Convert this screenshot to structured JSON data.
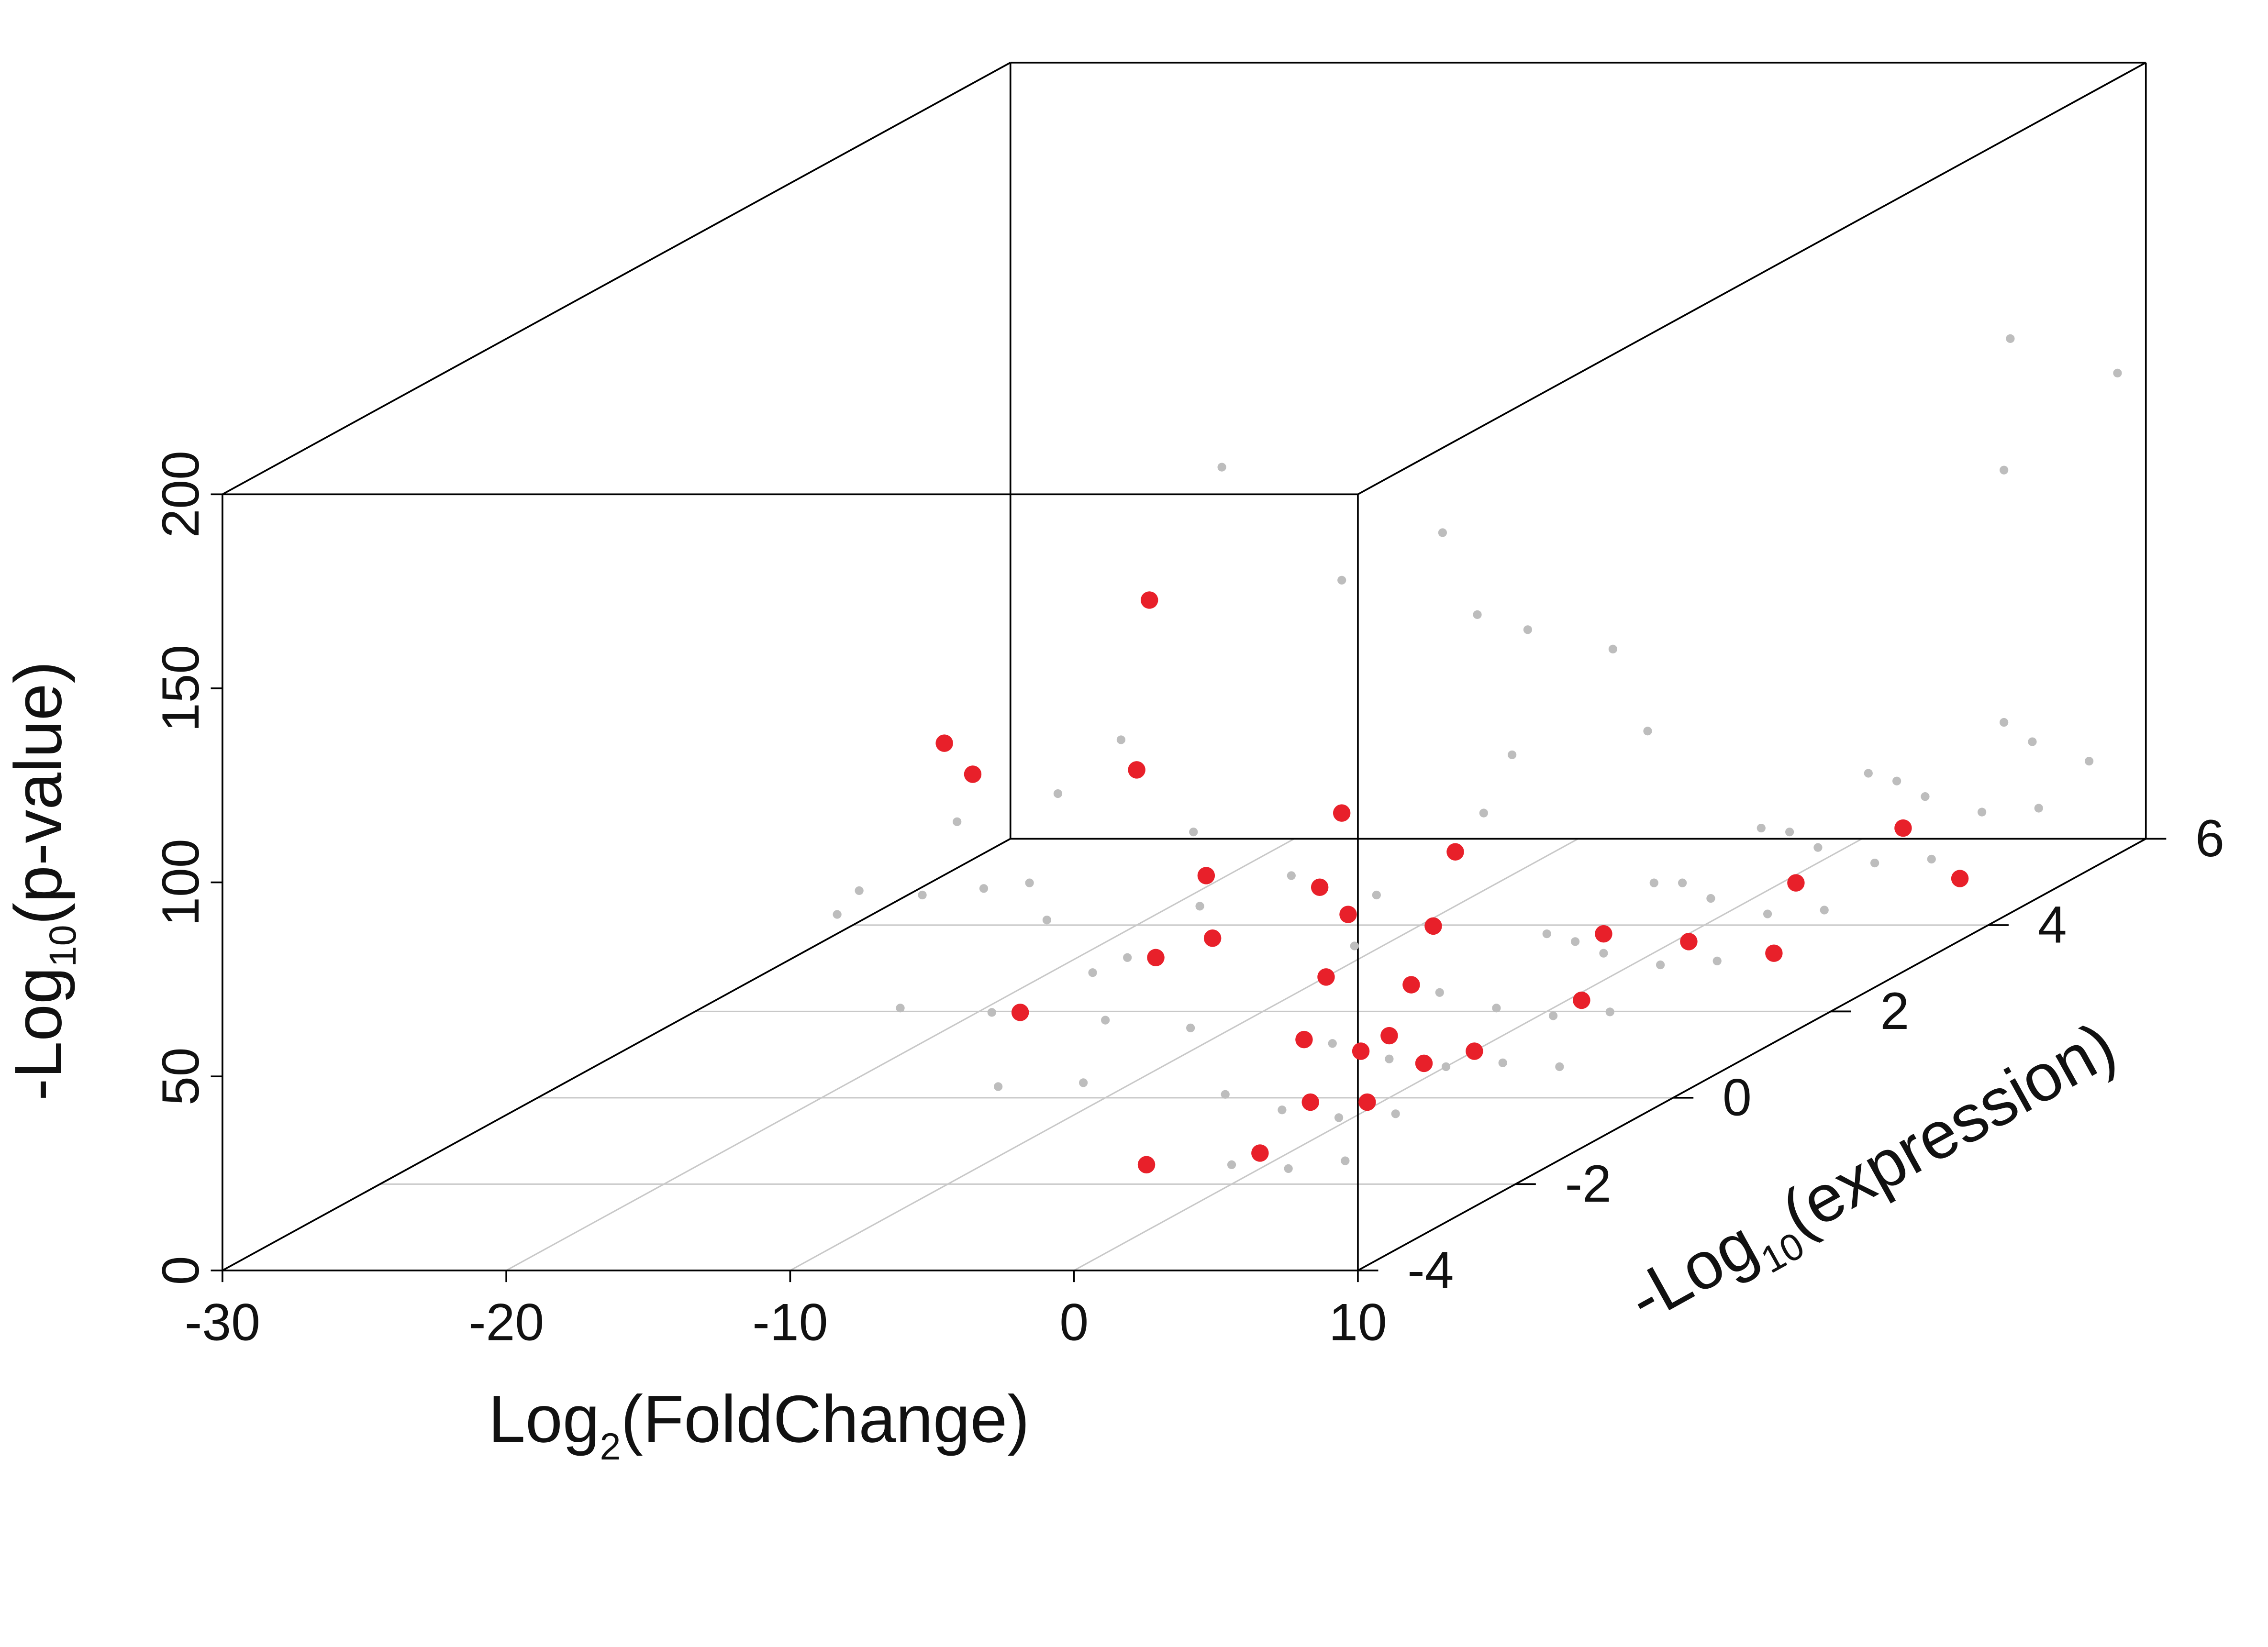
{
  "chart_data": {
    "type": "scatter3d",
    "x_label": {
      "main": "Log",
      "sub": "2",
      "rest": "(FoldChange)"
    },
    "z_label": {
      "main": "-Log",
      "sub": "10",
      "rest": "(p-value)"
    },
    "depth_label": {
      "main": "-Log",
      "sub": "10",
      "rest": "(expression)"
    },
    "xlim": [
      -30,
      10
    ],
    "xticks": [
      -30,
      -20,
      -10,
      0,
      10
    ],
    "depthlim": [
      -4,
      6
    ],
    "depthticks": [
      -4,
      -2,
      0,
      2,
      4,
      6
    ],
    "zlim": [
      0,
      200
    ],
    "zticks": [
      0,
      50,
      100,
      150,
      200
    ],
    "grid": true,
    "series": [
      {
        "color": "#bdbdbd",
        "x": [
          0,
          1,
          2,
          3,
          4,
          5,
          6,
          2,
          3,
          4,
          5,
          6,
          7,
          8,
          -1,
          0,
          1,
          2,
          3,
          4,
          5,
          6,
          7,
          8,
          9,
          1,
          2,
          3,
          4,
          -2,
          -1,
          0,
          1,
          2,
          3,
          5,
          -3,
          -2,
          4,
          6,
          -10,
          -12,
          -8,
          -14,
          -6,
          -5,
          -9,
          -4,
          -7,
          -11,
          -27,
          -25,
          -24,
          -22,
          -21,
          -20,
          -19,
          -18,
          -16,
          -15,
          -17,
          -10,
          -12,
          -8,
          -15,
          -6,
          -4,
          -18,
          8,
          9,
          5,
          -2,
          -9,
          -20
        ],
        "depth": [
          0,
          1,
          2,
          3,
          4,
          5,
          6,
          0,
          1,
          2,
          3,
          4,
          5,
          6,
          -1,
          -2,
          -1,
          -2,
          -1,
          0,
          1,
          2,
          3,
          4,
          5,
          2,
          3,
          4,
          5,
          0,
          1,
          2,
          3,
          4,
          5,
          6,
          -1,
          1,
          -2,
          0,
          0,
          1,
          -1,
          0,
          2,
          3,
          2,
          1,
          0,
          -1,
          3,
          2,
          3.5,
          2,
          3,
          1,
          2.5,
          4,
          2,
          3,
          4,
          3,
          5,
          4,
          2,
          5,
          3,
          1,
          5,
          6,
          6,
          4,
          5,
          3
        ],
        "z": [
          10,
          12,
          15,
          18,
          20,
          22,
          25,
          8,
          10,
          12,
          14,
          16,
          18,
          20,
          8,
          5,
          6,
          4,
          7,
          9,
          11,
          13,
          15,
          17,
          19,
          18,
          22,
          24,
          26,
          14,
          16,
          20,
          22,
          25,
          28,
          30,
          12,
          18,
          6,
          8,
          20,
          25,
          15,
          22,
          30,
          40,
          35,
          28,
          18,
          14,
          20,
          25,
          15,
          30,
          22,
          12,
          18,
          24,
          10,
          16,
          118,
          100,
          90,
          80,
          70,
          60,
          55,
          60,
          140,
          120,
          95,
          50,
          65,
          45
        ]
      },
      {
        "color": "#e8202a",
        "x": [
          -20,
          -12,
          -10,
          -9,
          -8,
          -7,
          -6,
          -5,
          -4,
          -3,
          -2,
          -1,
          0,
          -11,
          -13,
          1,
          2,
          3,
          4,
          5,
          6,
          7,
          8,
          2,
          -3,
          9,
          -24,
          -23,
          -14,
          4,
          0
        ],
        "depth": [
          4,
          2,
          3,
          1,
          2,
          2,
          3,
          1,
          2,
          0,
          1,
          0,
          -1,
          1,
          0,
          -2,
          -1,
          0,
          1,
          2,
          3,
          4,
          2,
          2,
          -2,
          4,
          3,
          3,
          2,
          -1,
          0
        ],
        "z": [
          40,
          35,
          40,
          30,
          32,
          25,
          30,
          20,
          22,
          15,
          18,
          12,
          10,
          25,
          22,
          8,
          10,
          12,
          14,
          18,
          22,
          25,
          15,
          20,
          5,
          12,
          58,
          50,
          106,
          20,
          16
        ]
      }
    ]
  }
}
